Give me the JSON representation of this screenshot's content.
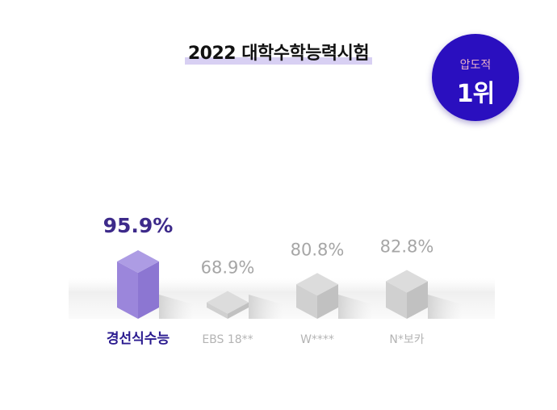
{
  "title": "2022 대학수학능력시험",
  "badge": {
    "sub": "압도적",
    "main": "1위"
  },
  "colors": {
    "highlight": "#6b52c6",
    "muted": "#9a9a9a",
    "badge": "#2a0fbf"
  },
  "chart_data": {
    "type": "bar",
    "categories": [
      "경선식수능",
      "EBS 18**",
      "W****",
      "N*보카"
    ],
    "values": [
      95.9,
      68.9,
      80.8,
      82.8
    ],
    "value_labels": [
      "95.9%",
      "68.9%",
      "80.8%",
      "82.8%"
    ],
    "highlight_index": 0,
    "ylim": [
      0,
      100
    ],
    "grid": false,
    "legend": "none"
  }
}
